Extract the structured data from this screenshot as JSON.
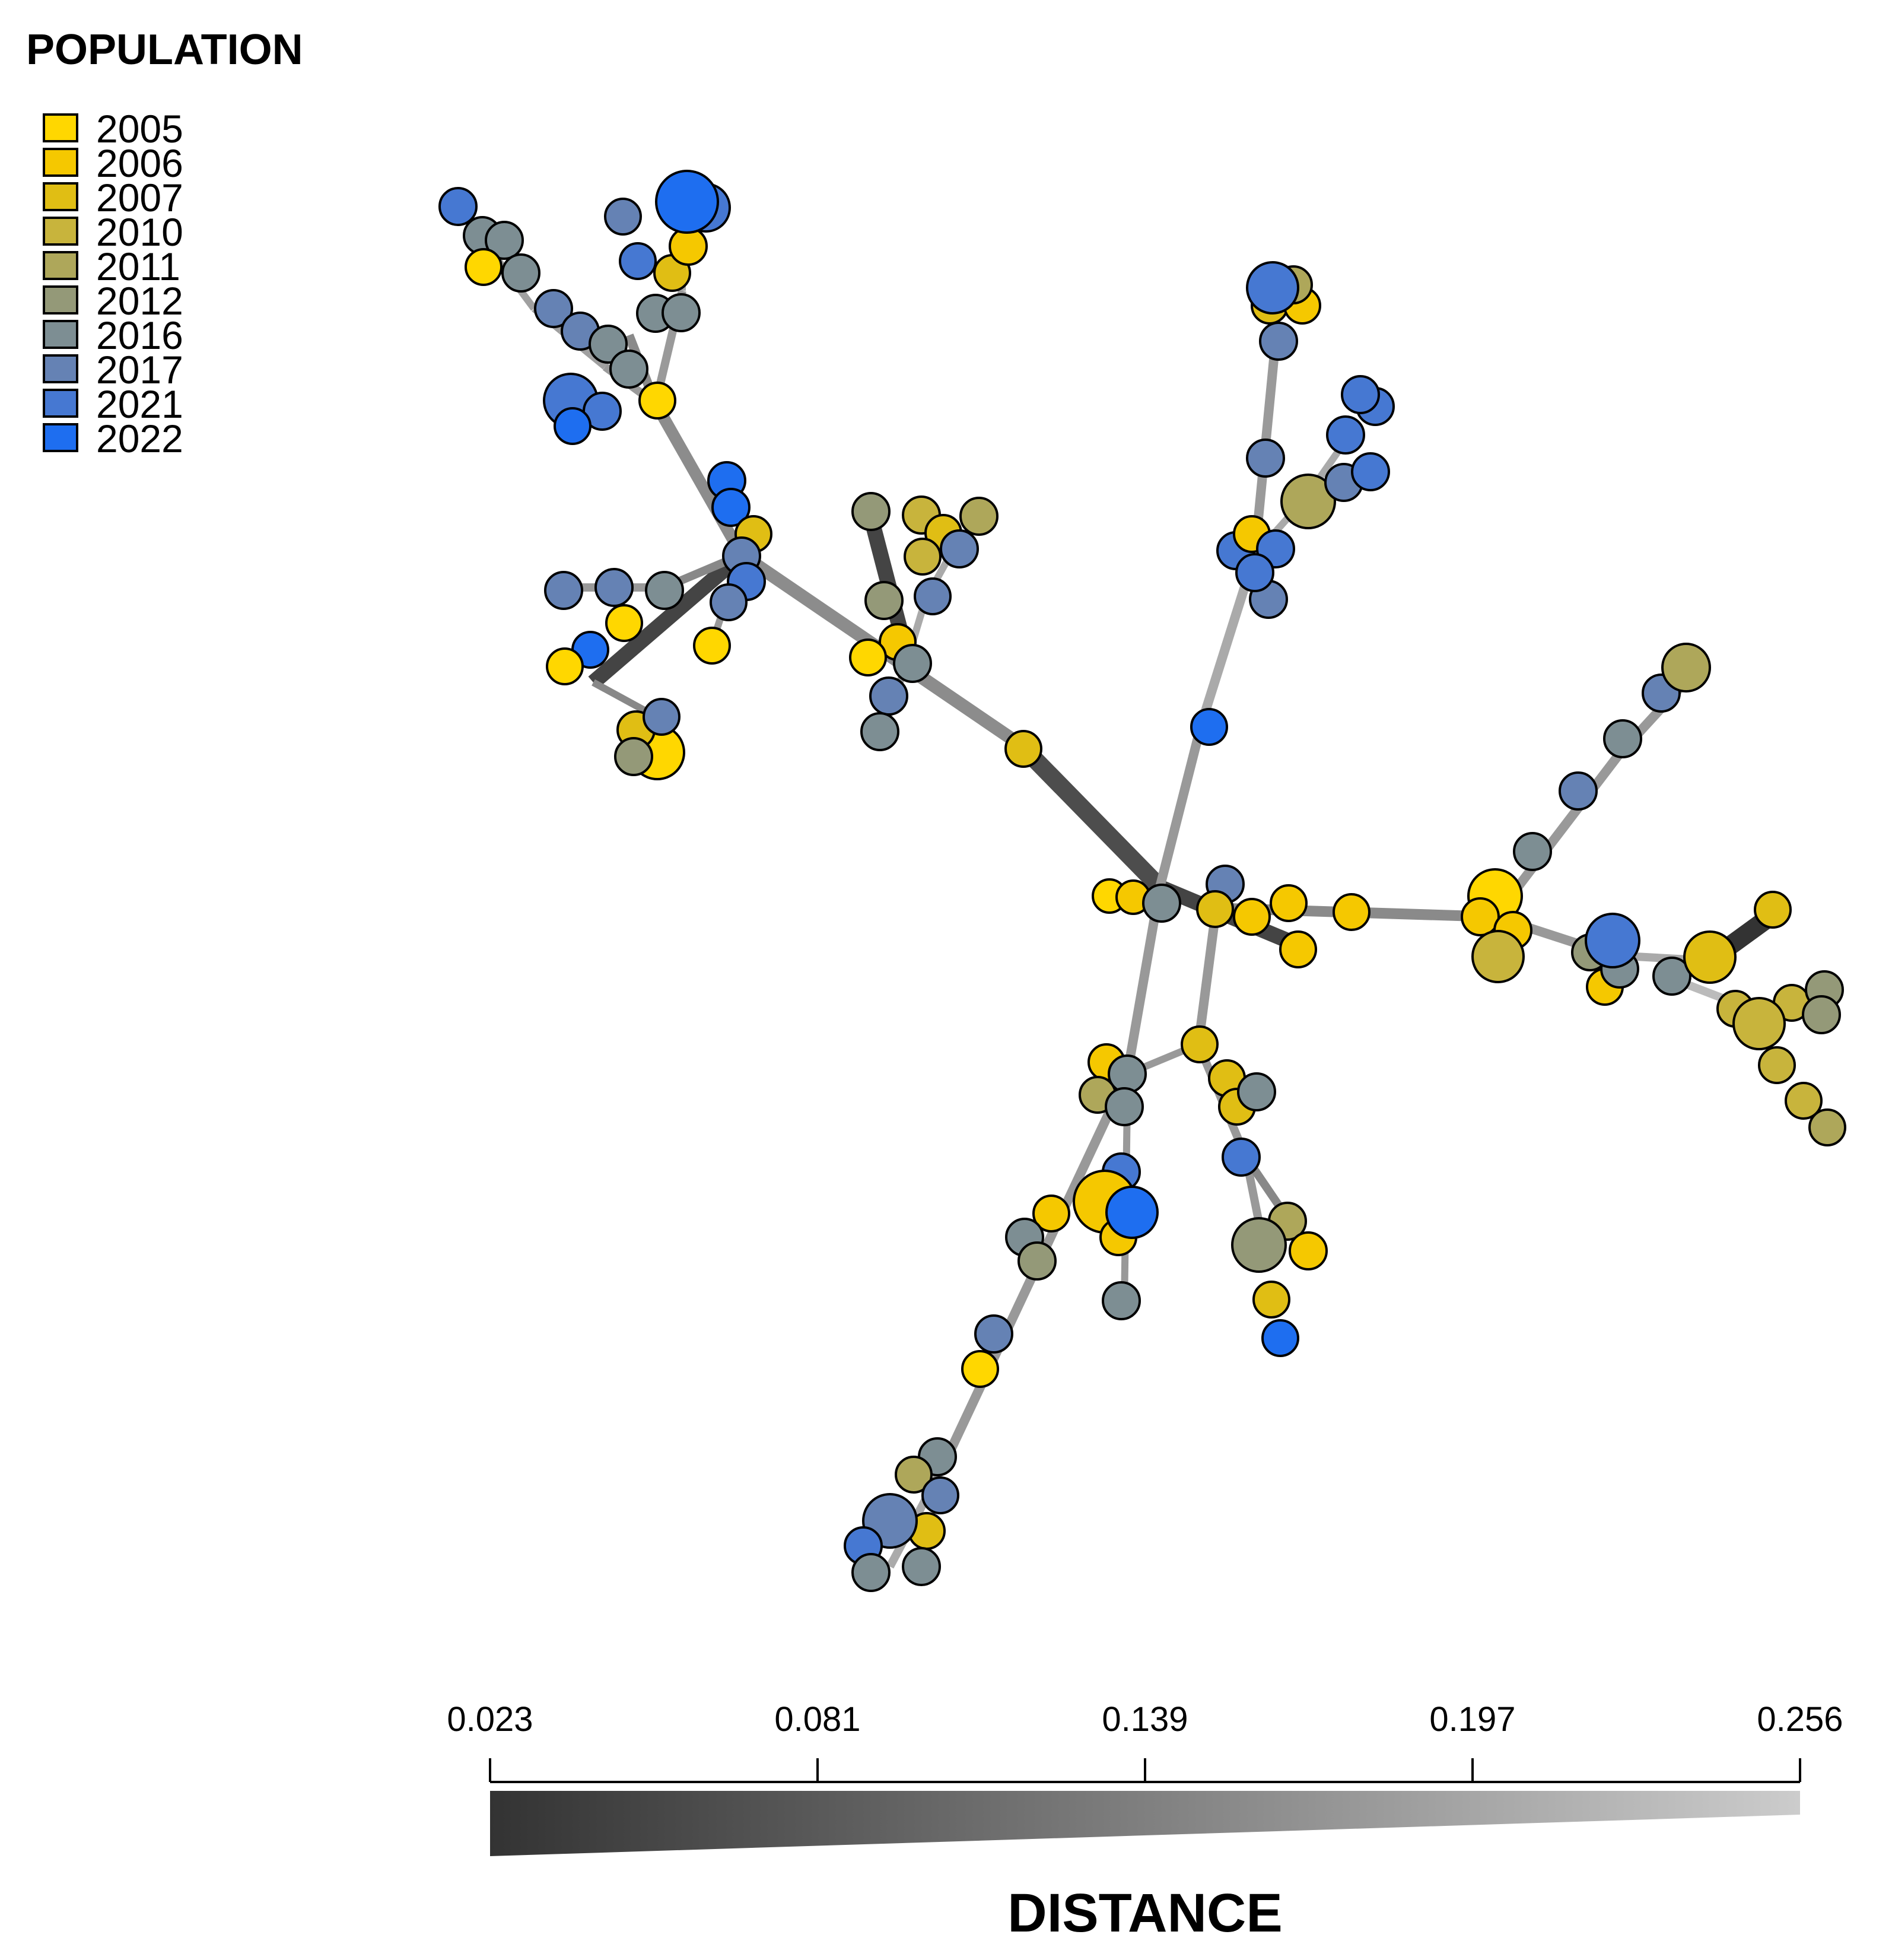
{
  "legend": {
    "title": "POPULATION",
    "items": [
      {
        "label": "2005",
        "color": "#FFD700"
      },
      {
        "label": "2006",
        "color": "#F5C800"
      },
      {
        "label": "2007",
        "color": "#E0BE14"
      },
      {
        "label": "2010",
        "color": "#C8B43C"
      },
      {
        "label": "2011",
        "color": "#AEA75A"
      },
      {
        "label": "2012",
        "color": "#949978"
      },
      {
        "label": "2016",
        "color": "#7D8E93"
      },
      {
        "label": "2017",
        "color": "#6582B4"
      },
      {
        "label": "2021",
        "color": "#4678D2"
      },
      {
        "label": "2022",
        "color": "#1E6EF0"
      }
    ]
  },
  "distance_scale": {
    "title": "DISTANCE",
    "ticks": [
      "0.023",
      "0.081",
      "0.139",
      "0.197",
      "0.256"
    ],
    "min_color": "#333333",
    "max_color": "#CCCCCC"
  }
}
